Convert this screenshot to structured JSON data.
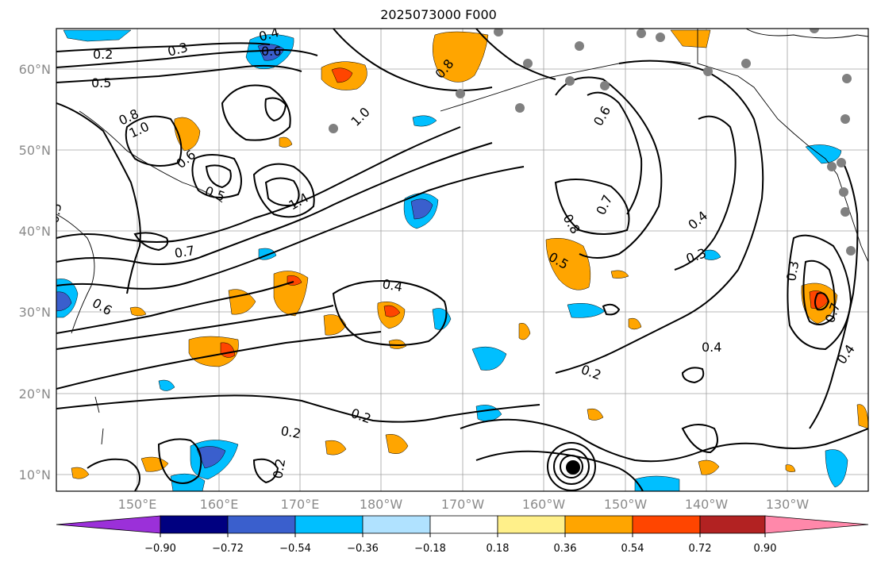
{
  "title": "2025073000 F000",
  "latitude_labels": [
    "60°N",
    "50°N",
    "40°N",
    "30°N",
    "20°N",
    "10°N"
  ],
  "longitude_labels": [
    "150°E",
    "160°E",
    "170°E",
    "180°W",
    "170°W",
    "160°W",
    "150°W",
    "140°W",
    "130°W"
  ],
  "contour_labels": [
    "0.2",
    "0.3",
    "0.4",
    "0.5",
    "0.6",
    "0.7",
    "0.8",
    "1.0",
    "1.4",
    "0.5",
    "0.6",
    "0.7",
    "0.4",
    "0.2",
    "0.3",
    "0.8",
    "0.6",
    "0.4",
    "0.2",
    "0.5",
    "0.7",
    "0.4",
    "0.3",
    "0.2",
    "1.0",
    "0.2",
    "0.4",
    "0.6",
    "0.5",
    "0.8"
  ],
  "colorbar": {
    "tick_labels": [
      "−0.90",
      "−0.72",
      "−0.54",
      "−0.36",
      "−0.18",
      "0.18",
      "0.36",
      "0.54",
      "0.72",
      "0.90"
    ],
    "colors": [
      "#9b30d9",
      "#000080",
      "#3a5fcd",
      "#00bfff",
      "#b0e2ff",
      "#ffffff",
      "#fff08a",
      "#ffa500",
      "#ff4500",
      "#b22222",
      "#ff88aa"
    ]
  },
  "fill_colors": {
    "light_blue": "#00bfff",
    "mid_blue": "#3a5fcd",
    "orange": "#ffa500",
    "red_orange": "#ff4500",
    "gray_dot": "#808080"
  }
}
